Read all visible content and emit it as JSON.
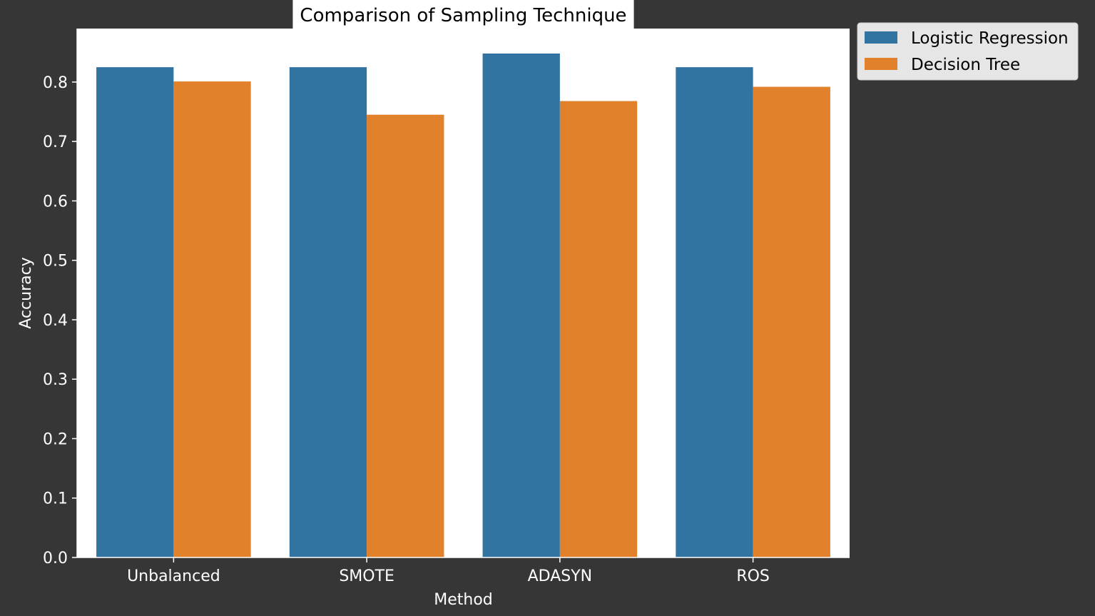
{
  "colors": {
    "figure_background": "#363636",
    "plot_background": "#ffffff",
    "text_on_dark": "#ffffff",
    "series_1": "#3274a1",
    "series_2": "#e1812c"
  },
  "chart_data": {
    "type": "bar",
    "title": "Comparison of Sampling Technique",
    "xlabel": "Method",
    "ylabel": "Accuracy",
    "categories": [
      "Unbalanced",
      "SMOTE",
      "ADASYN",
      "ROS"
    ],
    "series": [
      {
        "name": "Logistic Regression",
        "color": "#3274a1",
        "values": [
          0.825,
          0.825,
          0.848,
          0.825
        ]
      },
      {
        "name": "Decision Tree",
        "color": "#e1812c",
        "values": [
          0.801,
          0.745,
          0.768,
          0.792
        ]
      }
    ],
    "ylim": [
      0,
      0.89
    ],
    "yticks": [
      "0.0",
      "0.1",
      "0.2",
      "0.3",
      "0.4",
      "0.5",
      "0.6",
      "0.7",
      "0.8"
    ],
    "grid": false,
    "legend_position": "outside top-right"
  }
}
